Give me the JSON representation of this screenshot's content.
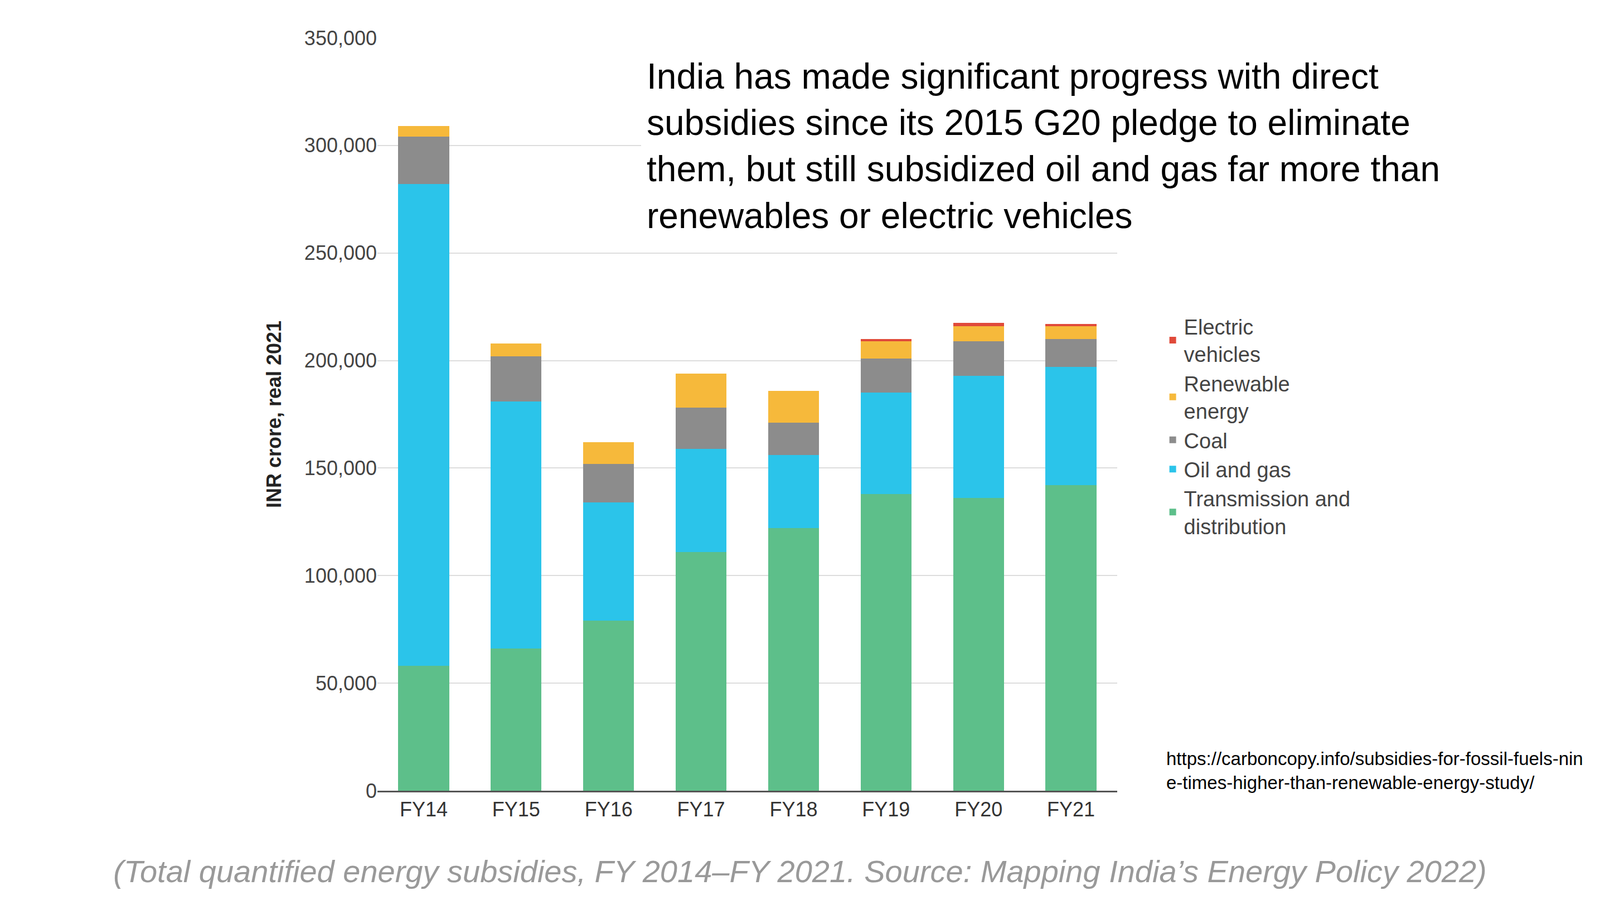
{
  "chart_data": {
    "type": "bar",
    "stacked": true,
    "title": "India has made significant progress with direct subsidies since its 2015 G20 pledge to eliminate them, but still subsidized oil and gas far more than renewables or electric vehicles",
    "y_label": "INR crore, real 2021",
    "annotations": [
      "https://carboncopy.info/subsidies-for-fossil-fuels-nine-times-higher-than-renewable-energy-study/",
      "(Total quantified energy subsidies, FY 2014–FY 2021. Source: Mapping India’s Energy Policy 2022)"
    ],
    "categories": [
      "FY14",
      "FY15",
      "FY16",
      "FY17",
      "FY18",
      "FY19",
      "FY20",
      "FY21"
    ],
    "series": [
      {
        "name": "Transmission and distribution",
        "color": "#5dbf8a",
        "values": [
          58000,
          66000,
          79000,
          111000,
          122000,
          138000,
          136000,
          142000
        ]
      },
      {
        "name": "Oil and gas",
        "color": "#2bc4ea",
        "values": [
          224000,
          115000,
          55000,
          48000,
          34000,
          47000,
          57000,
          55000
        ]
      },
      {
        "name": "Coal",
        "color": "#8c8c8c",
        "values": [
          22000,
          21000,
          18000,
          19000,
          15000,
          16000,
          16000,
          13000
        ]
      },
      {
        "name": "Renewable energy",
        "color": "#f6b93b",
        "values": [
          5000,
          6000,
          10000,
          16000,
          15000,
          8000,
          7000,
          6000
        ]
      },
      {
        "name": "Electric vehicles",
        "color": "#e04a3a",
        "values": [
          0,
          0,
          0,
          0,
          0,
          1000,
          1500,
          1000
        ]
      }
    ],
    "ylim": [
      0,
      350000
    ],
    "yticks": [
      0,
      {
        "value": 50000,
        "label": "50,000"
      },
      {
        "value": 100000,
        "label": "100,000"
      },
      {
        "value": 150000,
        "label": "150,000"
      },
      {
        "value": 200000,
        "label": "200,000"
      },
      {
        "value": 250000,
        "label": "250,000"
      },
      {
        "value": 300000,
        "label": "300,000"
      },
      {
        "value": 350000,
        "label": "350,000"
      }
    ],
    "grid": true,
    "legend": "right"
  }
}
